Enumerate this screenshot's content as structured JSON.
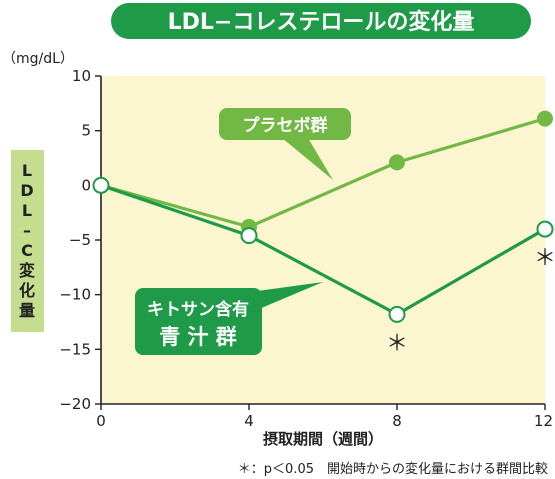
{
  "chart_data": {
    "type": "line",
    "title": "LDL−コレステロールの変化量",
    "unit_label": "（mg/dL）",
    "ylabel": "LDL−C変化量",
    "xlabel": "摂取期間（週間）",
    "x": [
      0,
      4,
      8,
      12
    ],
    "xlim": [
      0,
      12
    ],
    "ylim": [
      -20,
      10
    ],
    "x_ticks": [
      "0",
      "4",
      "8",
      "12"
    ],
    "y_ticks": [
      "10",
      "5",
      "0",
      "−5",
      "−10",
      "−15",
      "−20"
    ],
    "grid": false,
    "series": [
      {
        "name": "プラセボ群",
        "values": [
          0,
          -3.8,
          2.1,
          6.1
        ],
        "color": "#72b844",
        "marker": "filled-circle"
      },
      {
        "name": "キトサン含有 青汁群",
        "name_lines": [
          "キトサン含有",
          "青 汁 群"
        ],
        "values": [
          0,
          -4.6,
          -11.8,
          -4.0
        ],
        "color": "#1f9a48",
        "marker": "hollow-circle"
      }
    ],
    "significance_marks": [
      {
        "x": 8,
        "symbol": "＊"
      },
      {
        "x": 12,
        "symbol": "＊"
      }
    ],
    "footnote": "＊：p＜0.05　開始時からの変化量における群間比較",
    "colors": {
      "plot_background": "#fbf6cf",
      "title_bg": "#1f9a48",
      "ylabel_bg": "#c5dd8f",
      "axis": "#222222"
    }
  }
}
